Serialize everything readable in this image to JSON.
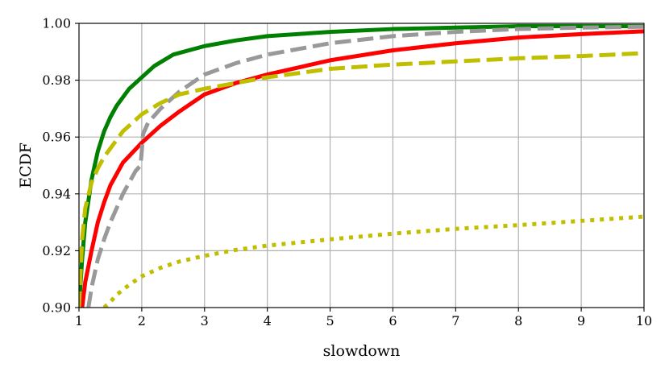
{
  "chart_data": {
    "type": "line",
    "title": "",
    "xlabel": "slowdown",
    "ylabel": "ECDF",
    "xlim": [
      1,
      10
    ],
    "ylim": [
      0.9,
      1.0
    ],
    "xticks": [
      1,
      2,
      3,
      4,
      5,
      6,
      7,
      8,
      9,
      10
    ],
    "xtick_labels": [
      "1",
      "2",
      "3",
      "4",
      "5",
      "6",
      "7",
      "8",
      "9",
      "10"
    ],
    "yticks": [
      0.9,
      0.92,
      0.94,
      0.96,
      0.98,
      1.0
    ],
    "ytick_labels": [
      "0.90",
      "0.92",
      "0.94",
      "0.96",
      "0.98",
      "1.00"
    ],
    "grid": true,
    "legend": "none",
    "series": [
      {
        "color": "#008000",
        "style": "solid",
        "x": [
          1.0,
          1.05,
          1.1,
          1.2,
          1.3,
          1.4,
          1.5,
          1.6,
          1.8,
          2.0,
          2.2,
          2.5,
          3.0,
          3.5,
          4.0,
          5.0,
          6.0,
          7.0,
          8.0,
          9.0,
          10.0
        ],
        "y": [
          0.9,
          0.917,
          0.93,
          0.945,
          0.955,
          0.962,
          0.967,
          0.971,
          0.977,
          0.981,
          0.985,
          0.989,
          0.992,
          0.994,
          0.9955,
          0.997,
          0.998,
          0.9985,
          0.999,
          0.999,
          0.999
        ]
      },
      {
        "color": "#ff0000",
        "style": "solid",
        "x": [
          1.05,
          1.1,
          1.2,
          1.3,
          1.4,
          1.5,
          1.7,
          2.0,
          2.3,
          2.6,
          3.0,
          3.5,
          4.0,
          5.0,
          6.0,
          7.0,
          8.0,
          9.0,
          10.0
        ],
        "y": [
          0.9,
          0.909,
          0.92,
          0.93,
          0.937,
          0.943,
          0.951,
          0.958,
          0.964,
          0.969,
          0.975,
          0.979,
          0.982,
          0.987,
          0.9905,
          0.993,
          0.995,
          0.9962,
          0.9972
        ]
      },
      {
        "color": "#999999",
        "style": "dashed",
        "x": [
          1.15,
          1.2,
          1.3,
          1.4,
          1.5,
          1.6,
          1.7,
          1.8,
          1.9,
          1.98,
          2.0,
          2.02,
          2.1,
          2.3,
          2.6,
          3.0,
          3.5,
          4.0,
          5.0,
          6.0,
          7.0,
          8.0,
          9.0,
          10.0
        ],
        "y": [
          0.9,
          0.907,
          0.917,
          0.924,
          0.93,
          0.935,
          0.94,
          0.944,
          0.948,
          0.95,
          0.955,
          0.961,
          0.965,
          0.97,
          0.976,
          0.982,
          0.986,
          0.989,
          0.993,
          0.9955,
          0.997,
          0.998,
          0.9985,
          0.9988
        ]
      },
      {
        "color": "#bfbf00",
        "style": "dashed",
        "x": [
          1.0,
          1.05,
          1.1,
          1.2,
          1.3,
          1.4,
          1.5,
          1.7,
          2.0,
          2.3,
          2.6,
          3.0,
          3.5,
          4.0,
          5.0,
          6.0,
          7.0,
          8.0,
          9.0,
          10.0
        ],
        "y": [
          0.9,
          0.924,
          0.935,
          0.944,
          0.949,
          0.953,
          0.956,
          0.962,
          0.968,
          0.972,
          0.975,
          0.977,
          0.979,
          0.981,
          0.984,
          0.9855,
          0.9866,
          0.9877,
          0.9885,
          0.9895
        ]
      },
      {
        "color": "#bfbf00",
        "style": "dotted",
        "x": [
          1.4,
          1.5,
          1.6,
          1.8,
          2.0,
          2.3,
          2.6,
          3.0,
          3.5,
          4.0,
          5.0,
          6.0,
          7.0,
          8.0,
          9.0,
          10.0
        ],
        "y": [
          0.9,
          0.902,
          0.9045,
          0.908,
          0.911,
          0.914,
          0.9162,
          0.9182,
          0.9203,
          0.9218,
          0.924,
          0.926,
          0.9277,
          0.929,
          0.9305,
          0.932
        ]
      }
    ]
  }
}
